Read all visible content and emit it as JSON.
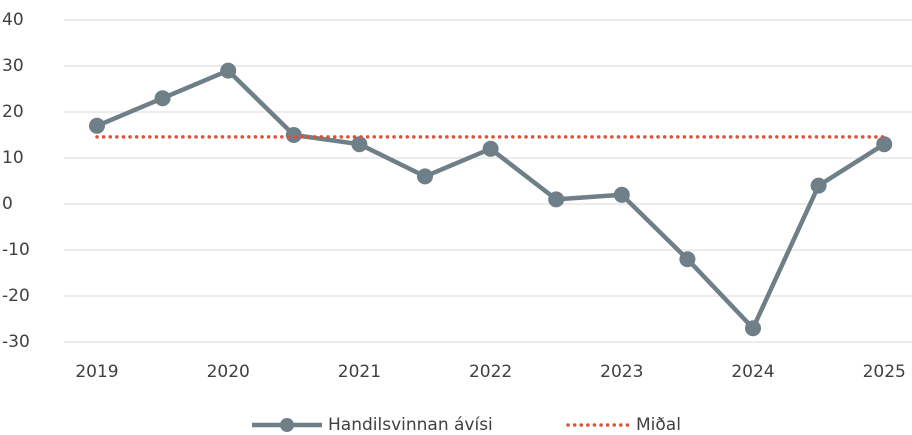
{
  "chart_data": {
    "type": "line",
    "categories": [
      "2019",
      null,
      "2020",
      null,
      "2021",
      null,
      "2022",
      null,
      "2023",
      null,
      "2024",
      null,
      "2025"
    ],
    "series": [
      {
        "name": "Handilsvinnan ávísi",
        "color": "#6e7f88",
        "values": [
          17,
          23,
          29,
          15,
          13,
          6,
          12,
          1,
          2,
          -12,
          -27,
          4,
          13
        ]
      },
      {
        "name": "Miðal",
        "color": "#d9533b",
        "values": [
          14.6,
          14.6,
          14.6,
          14.6,
          14.6,
          14.6,
          14.6,
          14.6,
          14.6,
          14.6,
          14.6,
          14.6,
          14.6
        ]
      }
    ],
    "ylim": [
      -30,
      40
    ],
    "yticks": [
      -30,
      -20,
      -10,
      0,
      10,
      20,
      30,
      40
    ],
    "grid": true,
    "legend": "bottom"
  }
}
